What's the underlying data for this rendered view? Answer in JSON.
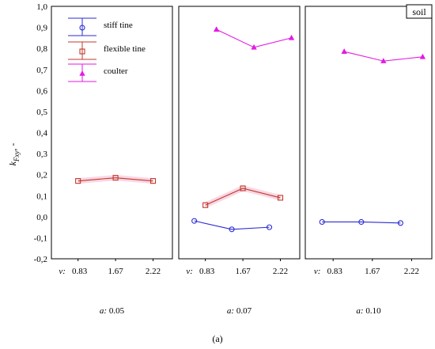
{
  "chart_data": {
    "type": "line",
    "ylabel": "k",
    "ylabel_sub": "Fxy",
    "ylabel_suffix": ", -",
    "ylim": [
      -0.2,
      1.0
    ],
    "yticks": [
      "1,0",
      "0,9",
      "0,8",
      "0,7",
      "0,6",
      "0,5",
      "0,4",
      "0,3",
      "0,2",
      "0,1",
      "0,0",
      "-0,1",
      "-0,2"
    ],
    "x_prefix": "v:",
    "categories": [
      "0.83",
      "1.67",
      "2.22"
    ],
    "condition_label": "soil",
    "caption": "(a)",
    "legend": [
      {
        "name": "stiff tine",
        "color": "#2b2bd6",
        "marker": "circle"
      },
      {
        "name": "flexible tine",
        "color": "#c0392b",
        "marker": "square"
      },
      {
        "name": "coulter",
        "color": "#e31ae3",
        "marker": "triangle"
      }
    ],
    "panels": [
      {
        "label_prefix": "a:",
        "label_value": "0.05",
        "series": [
          {
            "name": "flexible tine",
            "values": [
              0.17,
              0.185,
              0.17
            ]
          }
        ]
      },
      {
        "label_prefix": "a:",
        "label_value": "0.07",
        "series": [
          {
            "name": "stiff tine",
            "values": [
              -0.02,
              -0.06,
              -0.05
            ]
          },
          {
            "name": "flexible tine",
            "values": [
              0.055,
              0.135,
              0.09
            ]
          },
          {
            "name": "coulter",
            "values": [
              0.89,
              0.805,
              0.85
            ]
          }
        ]
      },
      {
        "label_prefix": "a:",
        "label_value": "0.10",
        "series": [
          {
            "name": "stiff tine",
            "values": [
              -0.025,
              -0.025,
              -0.03
            ]
          },
          {
            "name": "coulter",
            "values": [
              0.785,
              0.74,
              0.76
            ]
          }
        ]
      }
    ]
  }
}
